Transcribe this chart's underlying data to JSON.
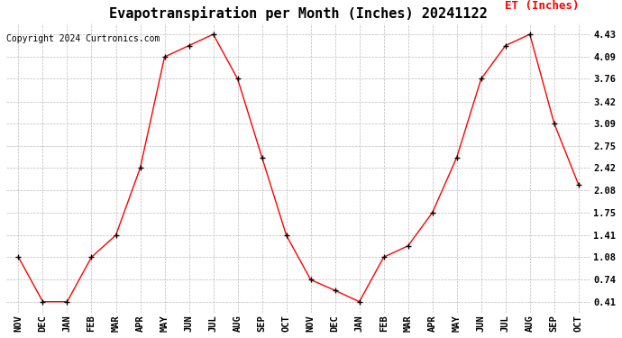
{
  "title": "Evapotranspiration per Month (Inches) 20241122",
  "copyright": "Copyright 2024 Curtronics.com",
  "legend_label": "ET (Inches)",
  "months": [
    "NOV",
    "DEC",
    "JAN",
    "FEB",
    "MAR",
    "APR",
    "MAY",
    "JUN",
    "JUL",
    "AUG",
    "SEP",
    "OCT",
    "NOV",
    "DEC",
    "JAN",
    "FEB",
    "MAR",
    "APR",
    "MAY",
    "JUN",
    "JUL",
    "AUG",
    "SEP",
    "OCT"
  ],
  "values": [
    1.08,
    0.41,
    0.41,
    1.08,
    1.41,
    2.42,
    4.09,
    4.26,
    4.43,
    3.76,
    2.58,
    1.41,
    0.74,
    0.58,
    0.41,
    1.08,
    1.25,
    1.75,
    2.58,
    3.76,
    4.26,
    4.43,
    3.09,
    2.17
  ],
  "line_color": "red",
  "marker_color": "black",
  "grid_color": "#bbbbbb",
  "background_color": "#ffffff",
  "ylim": [
    0.25,
    4.6
  ],
  "yticks": [
    0.41,
    0.74,
    1.08,
    1.41,
    1.75,
    2.08,
    2.42,
    2.75,
    3.09,
    3.42,
    3.76,
    4.09,
    4.43
  ],
  "title_fontsize": 11,
  "tick_fontsize": 7.5,
  "copyright_fontsize": 7,
  "legend_fontsize": 9
}
